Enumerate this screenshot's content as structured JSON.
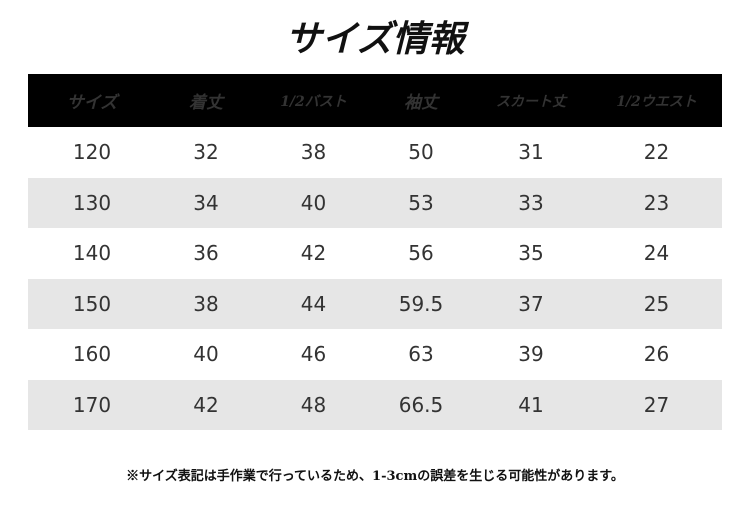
{
  "header": {
    "title": "サイズ情報"
  },
  "table": {
    "columns": [
      "サイズ",
      "着丈",
      "1/2バスト",
      "袖丈",
      "スカート丈",
      "1/2ウエスト"
    ],
    "rows": [
      [
        120,
        32,
        38,
        50,
        31,
        22
      ],
      [
        130,
        34,
        40,
        53,
        33,
        23
      ],
      [
        140,
        36,
        42,
        56,
        35,
        24
      ],
      [
        150,
        38,
        44,
        59.5,
        37,
        25
      ],
      [
        160,
        40,
        46,
        63,
        39,
        26
      ],
      [
        170,
        42,
        48,
        66.5,
        41,
        27
      ]
    ]
  },
  "footnote": "※サイズ表記は手作業で行っているため、1-3cmの誤差を生じる可能性があります。"
}
